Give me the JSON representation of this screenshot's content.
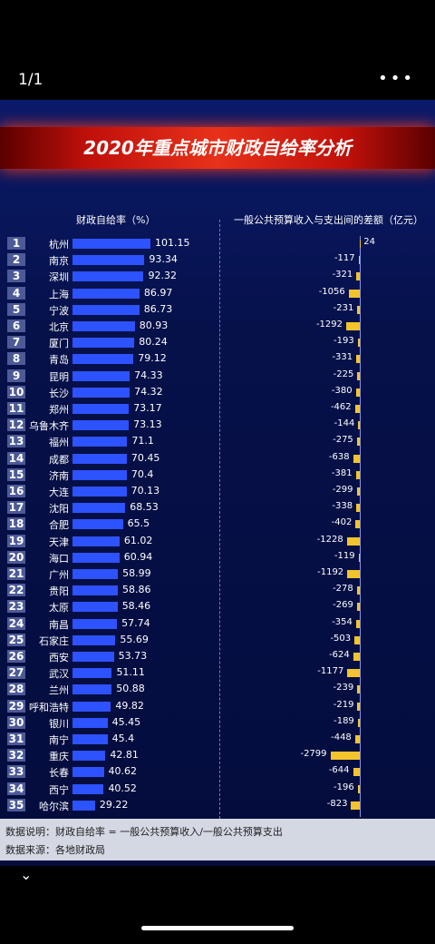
{
  "viewer": {
    "pager": "1/1",
    "more": "•••"
  },
  "chart_data": {
    "type": "bar",
    "title": "2020年重点城市财政自给率分析",
    "left_header": "财政自给率（%）",
    "right_header": "一般公共预算收入与支出间的差额（亿元）",
    "series": [
      {
        "name": "财政自给率（%）",
        "values": [
          101.15,
          93.34,
          92.32,
          86.97,
          86.73,
          80.93,
          80.24,
          79.12,
          74.33,
          74.32,
          73.17,
          73.13,
          71.1,
          70.45,
          70.4,
          70.13,
          68.53,
          65.5,
          61.02,
          60.94,
          58.99,
          58.86,
          58.46,
          57.74,
          55.69,
          53.73,
          51.11,
          50.88,
          49.82,
          45.45,
          45.4,
          42.81,
          40.62,
          40.52,
          29.22
        ],
        "labels": [
          "101.15",
          "93.34",
          "92.32",
          "86.97",
          "86.73",
          "80.93",
          "80.24",
          "79.12",
          "74.33",
          "74.32",
          "73.17",
          "73.13",
          "71.1",
          "70.45",
          "70.4",
          "70.13",
          "68.53",
          "65.5",
          "61.02",
          "60.94",
          "58.99",
          "58.86",
          "58.46",
          "57.74",
          "55.69",
          "53.73",
          "51.11",
          "50.88",
          "49.82",
          "45.45",
          "45.4",
          "42.81",
          "40.62",
          "40.52",
          "29.22"
        ]
      },
      {
        "name": "一般公共预算收入与支出间的差额（亿元）",
        "values": [
          24,
          -117,
          -321,
          -1056,
          -231,
          -1292,
          -193,
          -331,
          -225,
          -380,
          -462,
          -144,
          -275,
          -638,
          -381,
          -299,
          -338,
          -402,
          -1228,
          -119,
          -1192,
          -278,
          -269,
          -354,
          -503,
          -624,
          -1177,
          -239,
          -219,
          -189,
          -448,
          -2799,
          -644,
          -196,
          -823
        ],
        "labels": [
          "24",
          "-117",
          "-321",
          "-1056",
          "-231",
          "-1292",
          "-193",
          "-331",
          "-225",
          "-380",
          "-462",
          "-144",
          "-275",
          "-638",
          "-381",
          "-299",
          "-338",
          "-402",
          "-1228",
          "-119",
          "-1192",
          "-278",
          "-269",
          "-354",
          "-503",
          "-624",
          "-1177",
          "-239",
          "-219",
          "-189",
          "-448",
          "-2799",
          "-644",
          "-196",
          "-823"
        ]
      }
    ],
    "ranks": [
      "1",
      "2",
      "3",
      "4",
      "5",
      "6",
      "7",
      "8",
      "9",
      "10",
      "11",
      "12",
      "13",
      "14",
      "15",
      "16",
      "17",
      "18",
      "19",
      "20",
      "21",
      "22",
      "23",
      "24",
      "25",
      "26",
      "27",
      "28",
      "29",
      "30",
      "31",
      "32",
      "33",
      "34",
      "35"
    ],
    "categories": [
      "杭州",
      "南京",
      "深圳",
      "上海",
      "宁波",
      "北京",
      "厦门",
      "青岛",
      "昆明",
      "长沙",
      "郑州",
      "乌鲁木齐",
      "福州",
      "成都",
      "济南",
      "大连",
      "沈阳",
      "合肥",
      "天津",
      "海口",
      "广州",
      "贵阳",
      "太原",
      "南昌",
      "石家庄",
      "西安",
      "武汉",
      "兰州",
      "呼和浩特",
      "银川",
      "南宁",
      "重庆",
      "长春",
      "西宁",
      "哈尔滨"
    ],
    "colors": {
      "left_bar": "#2d52ff",
      "right_bar": "#f3c42b",
      "banner": "#d11a12"
    }
  },
  "notes": {
    "line1": "数据说明：财政自给率 = 一般公共预算收入/一般公共预算支出",
    "line2": "数据来源：各地财政局"
  }
}
